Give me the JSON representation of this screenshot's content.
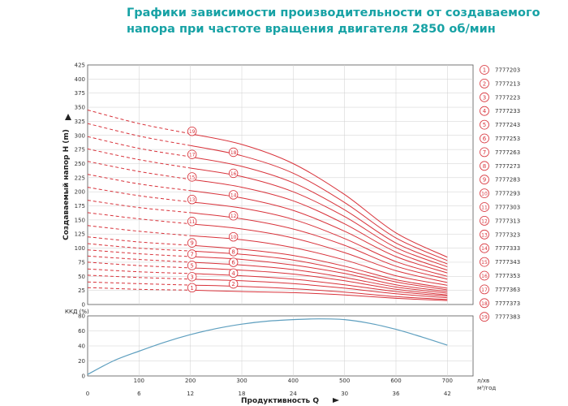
{
  "title": {
    "line1": "Графики зависимости производительности от создаваемого",
    "line2": "напора при частоте вращения двигателя 2850 об/мин"
  },
  "chart_data": [
    {
      "type": "line",
      "ylabel": "Создаваемый напор H (m)",
      "ylim": [
        0,
        425
      ],
      "yticks": [
        0,
        25,
        50,
        75,
        100,
        125,
        150,
        175,
        200,
        225,
        250,
        275,
        300,
        325,
        350,
        375,
        400,
        425
      ],
      "xlim": [
        0,
        750
      ],
      "x_label_side": "л/хв",
      "x_axis_top_ticks": [
        100,
        200,
        300,
        400,
        500,
        600,
        700
      ],
      "x_segment_boundary_dashed_until": 200,
      "colors": {
        "curve": "#d8323a",
        "grid": "#cfcfcf",
        "efficiency": "#5e9fbf"
      },
      "marker_positions": [
        200,
        200,
        200,
        200,
        200,
        200,
        200,
        200,
        200,
        200,
        200,
        200,
        200,
        200,
        200,
        200,
        200,
        200,
        200
      ],
      "series": [
        {
          "marker": "1",
          "name": "7777203",
          "h": [
            30,
            27,
            25.5,
            23,
            21,
            17,
            11,
            7
          ]
        },
        {
          "marker": "2",
          "name": "7777213",
          "h": [
            40,
            37,
            34.5,
            32,
            28,
            22,
            14,
            9
          ]
        },
        {
          "marker": "3",
          "name": "7777223",
          "h": [
            52,
            48,
            45,
            42,
            37,
            29,
            19,
            12
          ]
        },
        {
          "marker": "4",
          "name": "7777233",
          "h": [
            63,
            58,
            55,
            51,
            45,
            35,
            23,
            15
          ]
        },
        {
          "marker": "5",
          "name": "7777243",
          "h": [
            75,
            69,
            65,
            61,
            54,
            42,
            27,
            17
          ]
        },
        {
          "marker": "6",
          "name": "7777253",
          "h": [
            86,
            80,
            75,
            70,
            62,
            48,
            31,
            20
          ]
        },
        {
          "marker": "7",
          "name": "7777263",
          "h": [
            97,
            90,
            85,
            80,
            70,
            55,
            35,
            23
          ]
        },
        {
          "marker": "8",
          "name": "7777273",
          "h": [
            108,
            100,
            95,
            89,
            79,
            61,
            40,
            26
          ]
        },
        {
          "marker": "9",
          "name": "7777283",
          "h": [
            120,
            111,
            105,
            98,
            87,
            68,
            44,
            29
          ]
        },
        {
          "marker": "10",
          "name": "7777293",
          "h": [
            140,
            130,
            122,
            115,
            101,
            79,
            51,
            34
          ]
        },
        {
          "marker": "11",
          "name": "7777303",
          "h": [
            163,
            152,
            143,
            134,
            118,
            92,
            60,
            39
          ]
        },
        {
          "marker": "12",
          "name": "7777313",
          "h": [
            185,
            172,
            163,
            152,
            134,
            105,
            68,
            45
          ]
        },
        {
          "marker": "13",
          "name": "7777323",
          "h": [
            208,
            193,
            182,
            171,
            151,
            117,
            76,
            50
          ]
        },
        {
          "marker": "14",
          "name": "7777333",
          "h": [
            231,
            214,
            202,
            189,
            167,
            130,
            85,
            56
          ]
        },
        {
          "marker": "15",
          "name": "7777343",
          "h": [
            254,
            236,
            222,
            208,
            184,
            143,
            93,
            61
          ]
        },
        {
          "marker": "16",
          "name": "7777353",
          "h": [
            276,
            257,
            242,
            227,
            200,
            156,
            101,
            67
          ]
        },
        {
          "marker": "17",
          "name": "7777363",
          "h": [
            298,
            277,
            262,
            245,
            216,
            168,
            109,
            72
          ]
        },
        {
          "marker": "18",
          "name": "7777373",
          "h": [
            321,
            299,
            282,
            264,
            233,
            181,
            118,
            78
          ]
        },
        {
          "marker": "19",
          "name": "7777383",
          "h": [
            345,
            321,
            303,
            284,
            250,
            195,
            127,
            84
          ]
        }
      ],
      "h_x": [
        0,
        100,
        200,
        300,
        400,
        500,
        600,
        700
      ]
    },
    {
      "type": "line",
      "ylabel": "ККД (%)",
      "ylim": [
        0,
        80
      ],
      "yticks": [
        0,
        20,
        40,
        60,
        80
      ],
      "xlabel": "Продуктивность Q",
      "x_unit_label": "м³/год",
      "x_bottom_ticks": [
        0,
        6,
        12,
        18,
        24,
        30,
        36,
        42
      ],
      "series": [
        {
          "x": [
            0,
            50,
            100,
            150,
            200,
            250,
            300,
            350,
            400,
            450,
            500,
            550,
            600,
            650,
            700
          ],
          "values": [
            2,
            20,
            33,
            45,
            55,
            63,
            69,
            73,
            75,
            76,
            75,
            70,
            62,
            52,
            41
          ]
        }
      ]
    }
  ]
}
